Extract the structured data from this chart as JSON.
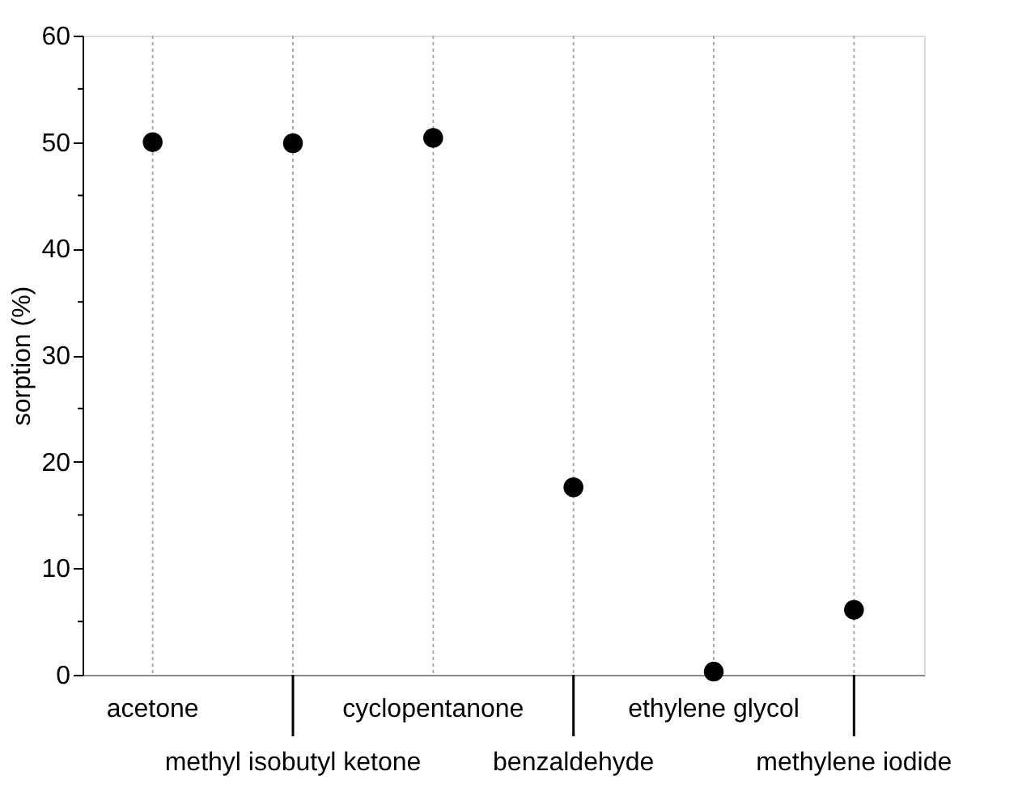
{
  "chart_data": {
    "type": "scatter",
    "ylabel": "sorption (%)",
    "categories": [
      "acetone",
      "methyl isobutyl ketone",
      "cyclopentanone",
      "benzaldehyde",
      "ethylene glycol",
      "methylene iodide"
    ],
    "values": [
      50.0,
      49.9,
      50.4,
      17.6,
      0.3,
      6.1
    ],
    "color": "#000000",
    "marker": "circle",
    "ylim": [
      0,
      60
    ],
    "yticks": [
      0,
      10,
      20,
      30,
      40,
      50,
      60
    ],
    "grid": "x"
  }
}
